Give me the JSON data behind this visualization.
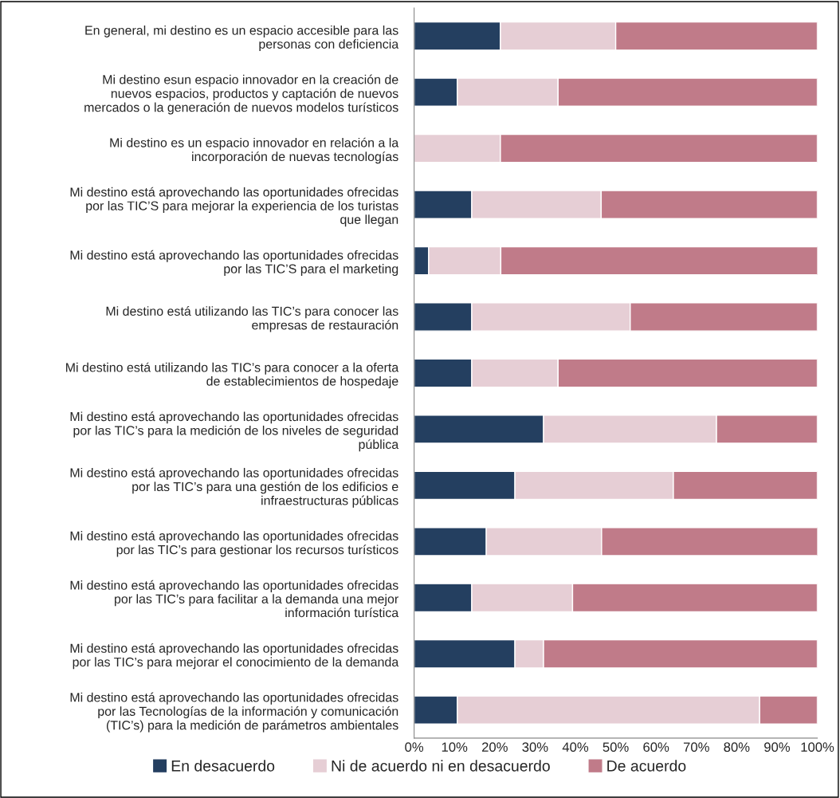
{
  "chart_data": {
    "type": "bar",
    "orientation": "horizontal",
    "stacked": true,
    "categories": [
      "En general, mi destino es un espacio accesible para las\npersonas con deficiencia",
      "Mi destino esun espacio innovador en la creación de\nnuevos espacios, productos y captación de nuevos\nmercados o la generación de nuevos modelos turísticos",
      "Mi destino es un espacio innovador en relación a la\nincorporación de nuevas tecnologías",
      "Mi destino está aprovechando las oportunidades ofrecidas\npor las TIC’S para mejorar la experiencia de los turistas\nque llegan",
      "Mi destino está aprovechando las oportunidades ofrecidas\npor las TIC’S para el marketing",
      "Mi destino está utilizando las TIC’s para conocer las\nempresas de restauración",
      "Mi destino está utilizando las TIC’s para conocer a la oferta\nde establecimientos de hospedaje",
      "Mi destino está aprovechando las oportunidades ofrecidas\npor las TIC’s para la medición de los niveles de seguridad\npública",
      "Mi destino está aprovechando las oportunidades ofrecidas\npor las TIC’s para una gestión de los edificios e\ninfraestructuras públicas",
      "Mi destino está aprovechando las oportunidades ofrecidas\npor las TIC’s para gestionar los recursos turísticos",
      "Mi destino está aprovechando las oportunidades ofrecidas\npor las TIC’s para facilitar a la demanda una mejor\ninformación turística",
      "Mi destino está aprovechando las oportunidades ofrecidas\npor las TIC’s para mejorar el conocimiento de la demanda",
      "Mi destino está aprovechando las oportunidades ofrecidas\npor las Tecnologías de la información y comunicación\n(TIC’s) para la medición de parámetros ambientales"
    ],
    "series": [
      {
        "name": "En desacuerdo",
        "color": "#243f60",
        "values": [
          21.4,
          10.7,
          0,
          14.3,
          3.6,
          14.3,
          14.3,
          32.1,
          25,
          17.9,
          14.3,
          25,
          10.7
        ]
      },
      {
        "name": "Ni de acuerdo ni en desacuerdo",
        "color": "#e6ced5",
        "values": [
          28.6,
          25,
          21.4,
          32.1,
          17.9,
          39.3,
          21.4,
          42.9,
          39.3,
          28.6,
          25,
          7.1,
          75
        ]
      },
      {
        "name": "De acuerdo",
        "color": "#c07b89",
        "values": [
          50,
          64.3,
          78.6,
          53.6,
          78.6,
          46.4,
          64.3,
          25,
          35.7,
          53.6,
          60.7,
          67.9,
          14.3
        ]
      }
    ],
    "xlim": [
      0,
      100
    ],
    "xticks": [
      {
        "value": 0,
        "label": "0%"
      },
      {
        "value": 10,
        "label": "10%"
      },
      {
        "value": 20,
        "label": "20%"
      },
      {
        "value": 30,
        "label": "30%"
      },
      {
        "value": 40,
        "label": "40%"
      },
      {
        "value": 50,
        "label": "50%"
      },
      {
        "value": 60,
        "label": "60%"
      },
      {
        "value": 70,
        "label": "70%"
      },
      {
        "value": 80,
        "label": "80%"
      },
      {
        "value": 90,
        "label": "90%"
      },
      {
        "value": 100,
        "label": "100%"
      }
    ],
    "grid": false,
    "legend": "bottom"
  }
}
